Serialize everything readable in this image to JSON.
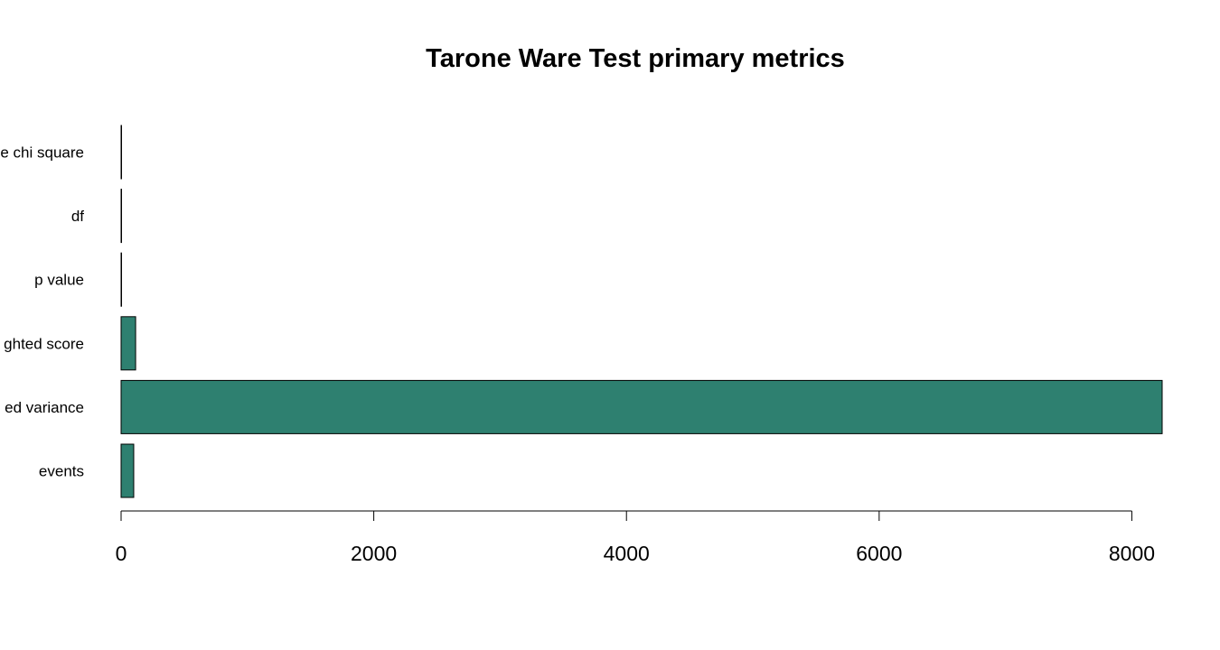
{
  "chart_data": {
    "type": "bar",
    "orientation": "horizontal",
    "title": "Tarone Ware Test primary metrics",
    "xlabel": "",
    "ylabel": "",
    "categories": [
      "Tarone Ware chi square",
      "df",
      "p value",
      "weighted score",
      "weighted variance",
      "events"
    ],
    "visible_category_labels": [
      "e chi square",
      "df",
      "p value",
      "ghted score",
      "ed variance",
      "events"
    ],
    "values": [
      0.9,
      1,
      0.3,
      115,
      8240,
      100
    ],
    "xlim": [
      0,
      8240
    ],
    "xticks": [
      0,
      2000,
      4000,
      6000,
      8000
    ],
    "xtick_labels": [
      "0",
      "2000",
      "4000",
      "6000",
      "8000"
    ],
    "grid": false,
    "legend": "none",
    "bar_color": "#2e8070",
    "bar_edge_color": "#000000"
  }
}
